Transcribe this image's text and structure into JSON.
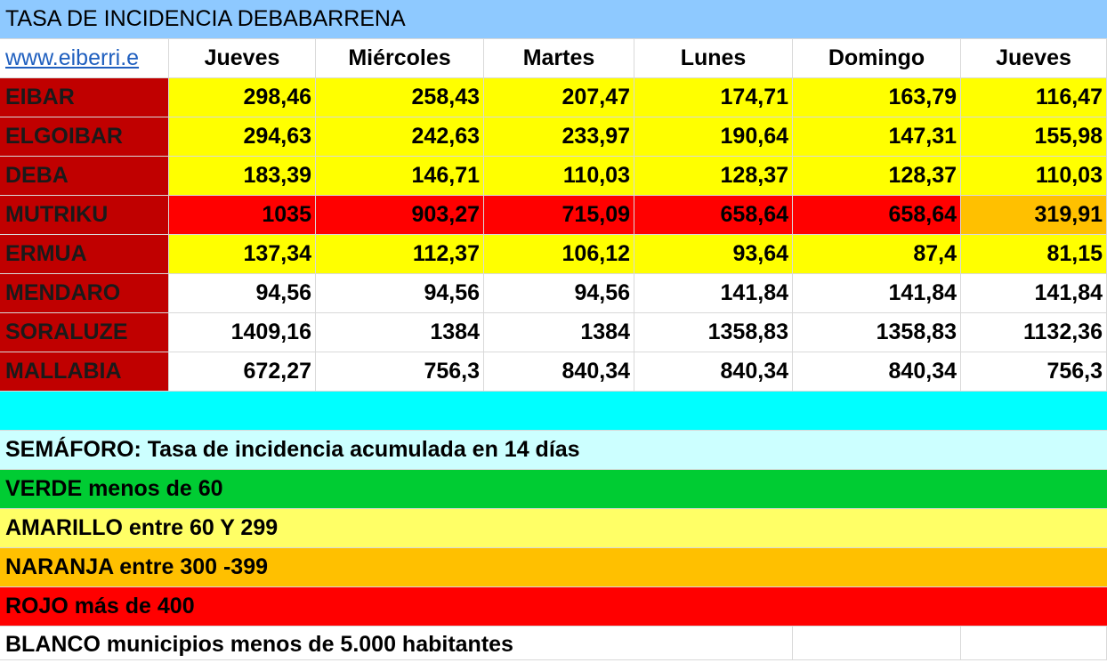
{
  "title": "TASA DE INCIDENCIA DEBABARRENA",
  "link_text": "www.eiberri.e",
  "headers": [
    "Jueves",
    "Miércoles",
    "Martes",
    "Lunes",
    "Domingo",
    "Jueves"
  ],
  "rows": [
    {
      "name": "EIBAR",
      "values": [
        "298,46",
        "258,43",
        "207,47",
        "174,71",
        "163,79",
        "116,47"
      ],
      "levels": [
        "amarillo",
        "amarillo",
        "amarillo",
        "amarillo",
        "amarillo",
        "amarillo"
      ]
    },
    {
      "name": "ELGOIBAR",
      "values": [
        "294,63",
        "242,63",
        "233,97",
        "190,64",
        "147,31",
        "155,98"
      ],
      "levels": [
        "amarillo",
        "amarillo",
        "amarillo",
        "amarillo",
        "amarillo",
        "amarillo"
      ]
    },
    {
      "name": "DEBA",
      "values": [
        "183,39",
        "146,71",
        "110,03",
        "128,37",
        "128,37",
        "110,03"
      ],
      "levels": [
        "amarillo",
        "amarillo",
        "amarillo",
        "amarillo",
        "amarillo",
        "amarillo"
      ]
    },
    {
      "name": "MUTRIKU",
      "values": [
        "1035",
        "903,27",
        "715,09",
        "658,64",
        "658,64",
        "319,91"
      ],
      "levels": [
        "rojo",
        "rojo",
        "rojo",
        "rojo",
        "rojo",
        "naranja"
      ]
    },
    {
      "name": "ERMUA",
      "values": [
        "137,34",
        "112,37",
        "106,12",
        "93,64",
        "87,4",
        "81,15"
      ],
      "levels": [
        "amarillo",
        "amarillo",
        "amarillo",
        "amarillo",
        "amarillo",
        "amarillo"
      ]
    },
    {
      "name": "MENDARO",
      "values": [
        "94,56",
        "94,56",
        "94,56",
        "141,84",
        "141,84",
        "141,84"
      ],
      "levels": [
        "blanco",
        "blanco",
        "blanco",
        "blanco",
        "blanco",
        "blanco"
      ]
    },
    {
      "name": "SORALUZE",
      "values": [
        "1409,16",
        "1384",
        "1384",
        "1358,83",
        "1358,83",
        "1132,36"
      ],
      "levels": [
        "blanco",
        "blanco",
        "blanco",
        "blanco",
        "blanco",
        "blanco"
      ]
    },
    {
      "name": "MALLABIA",
      "values": [
        "672,27",
        "756,3",
        "840,34",
        "840,34",
        "840,34",
        "756,3"
      ],
      "levels": [
        "blanco",
        "blanco",
        "blanco",
        "blanco",
        "blanco",
        "blanco"
      ]
    }
  ],
  "legend": {
    "semaforo": "SEMÁFORO:  Tasa de incidencia acumulada en 14 días",
    "verde": "VERDE menos de 60",
    "amarillo": "AMARILLO entre 60 Y 299",
    "naranja": "NARANJA entre 300 -399",
    "rojo": "ROJO más de 400",
    "blanco": "BLANCO municipios menos de 5.000 habitantes"
  },
  "colors": {
    "title_bg": "#8ec9ff",
    "name_bg": "#c00000",
    "amarillo": "#ffff00",
    "rojo": "#ff0000",
    "naranja": "#ffc000",
    "blanco": "#ffffff",
    "spacer": "#00ffff",
    "semaforo_bg": "#ccffff",
    "verde": "#00cc33",
    "amarillo_legend": "#ffff66",
    "naranja_legend": "#ffc000",
    "rojo_legend": "#ff0000"
  }
}
